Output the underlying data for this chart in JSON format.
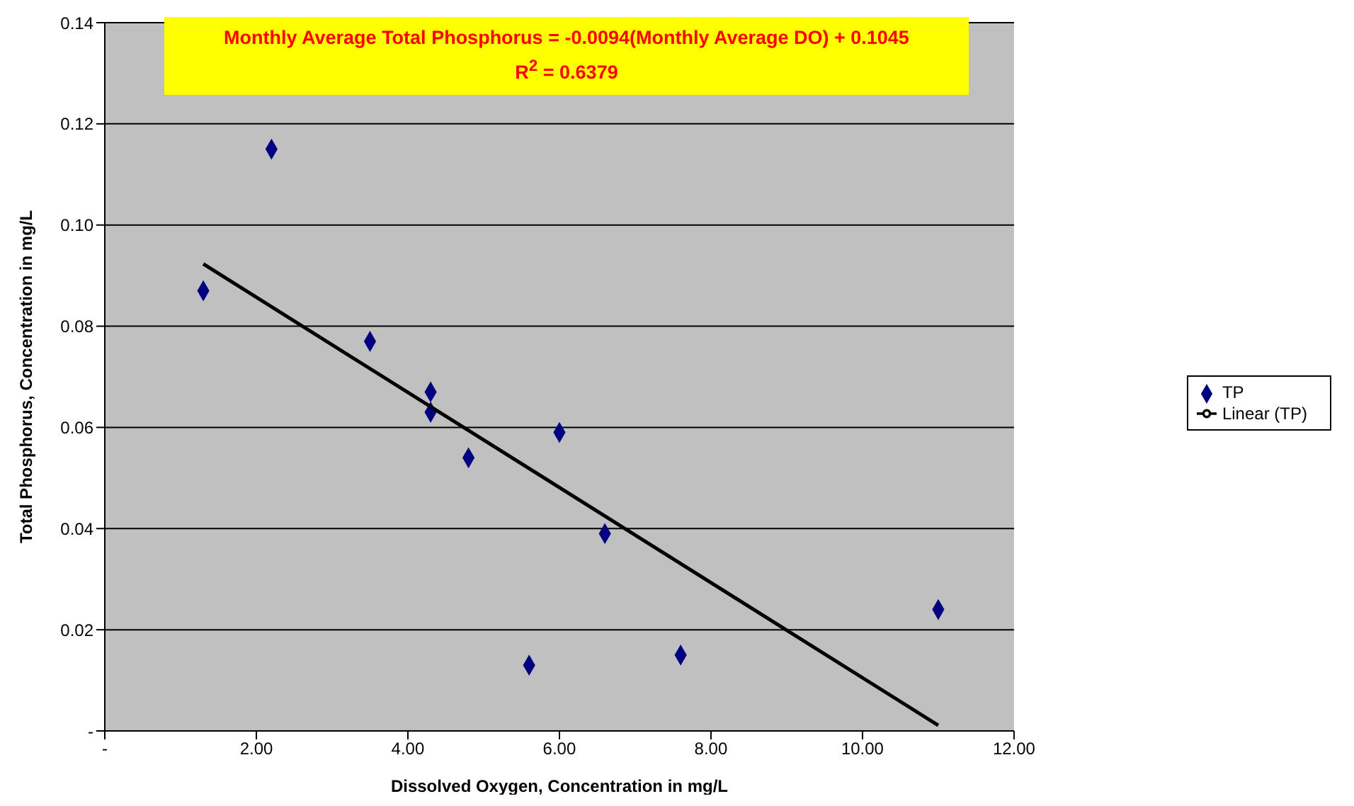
{
  "chart_data": {
    "type": "scatter",
    "xlabel": "Dissolved Oxygen, Concentration in mg/L",
    "ylabel": "Total Phosphorus, Concentration in mg/L",
    "annotations": [
      "Monthly Average Total Phosphorus = -0.0094(Monthly Average DO) + 0.1045",
      "R$^{2}$ = 0.6379"
    ],
    "series": [
      {
        "name": "TP",
        "color": "#000080",
        "marker": "diamond",
        "x": [
          1.3,
          2.2,
          3.5,
          4.3,
          4.3,
          4.8,
          6.0,
          5.6,
          6.6,
          7.6,
          11.0
        ],
        "values": [
          0.087,
          0.115,
          0.077,
          0.067,
          0.063,
          0.054,
          0.059,
          0.013,
          0.039,
          0.015,
          0.024
        ]
      },
      {
        "name": "Linear (TP)",
        "type": "line",
        "color": "#000000",
        "x": [
          1.3,
          11.0
        ],
        "values": [
          0.0923,
          0.0011
        ]
      }
    ],
    "xlim": [
      0,
      12
    ],
    "xticks": [
      {
        "value": 0,
        "label": "-"
      },
      {
        "value": 2,
        "label": "2.00"
      },
      {
        "value": 4,
        "label": "4.00"
      },
      {
        "value": 6,
        "label": "6.00"
      },
      {
        "value": 8,
        "label": "8.00"
      },
      {
        "value": 10,
        "label": "10.00"
      },
      {
        "value": 12,
        "label": "12.00"
      }
    ],
    "ylim": [
      0,
      0.14
    ],
    "yticks": [
      {
        "value": 0,
        "label": "-"
      },
      {
        "value": 0.02,
        "label": "0.02"
      },
      {
        "value": 0.04,
        "label": "0.04"
      },
      {
        "value": 0.06,
        "label": "0.06"
      },
      {
        "value": 0.08,
        "label": "0.08"
      },
      {
        "value": 0.1,
        "label": "0.10"
      },
      {
        "value": 0.12,
        "label": "0.12"
      },
      {
        "value": 0.14,
        "label": "0.14"
      }
    ],
    "grid": "y",
    "legend": "right"
  }
}
